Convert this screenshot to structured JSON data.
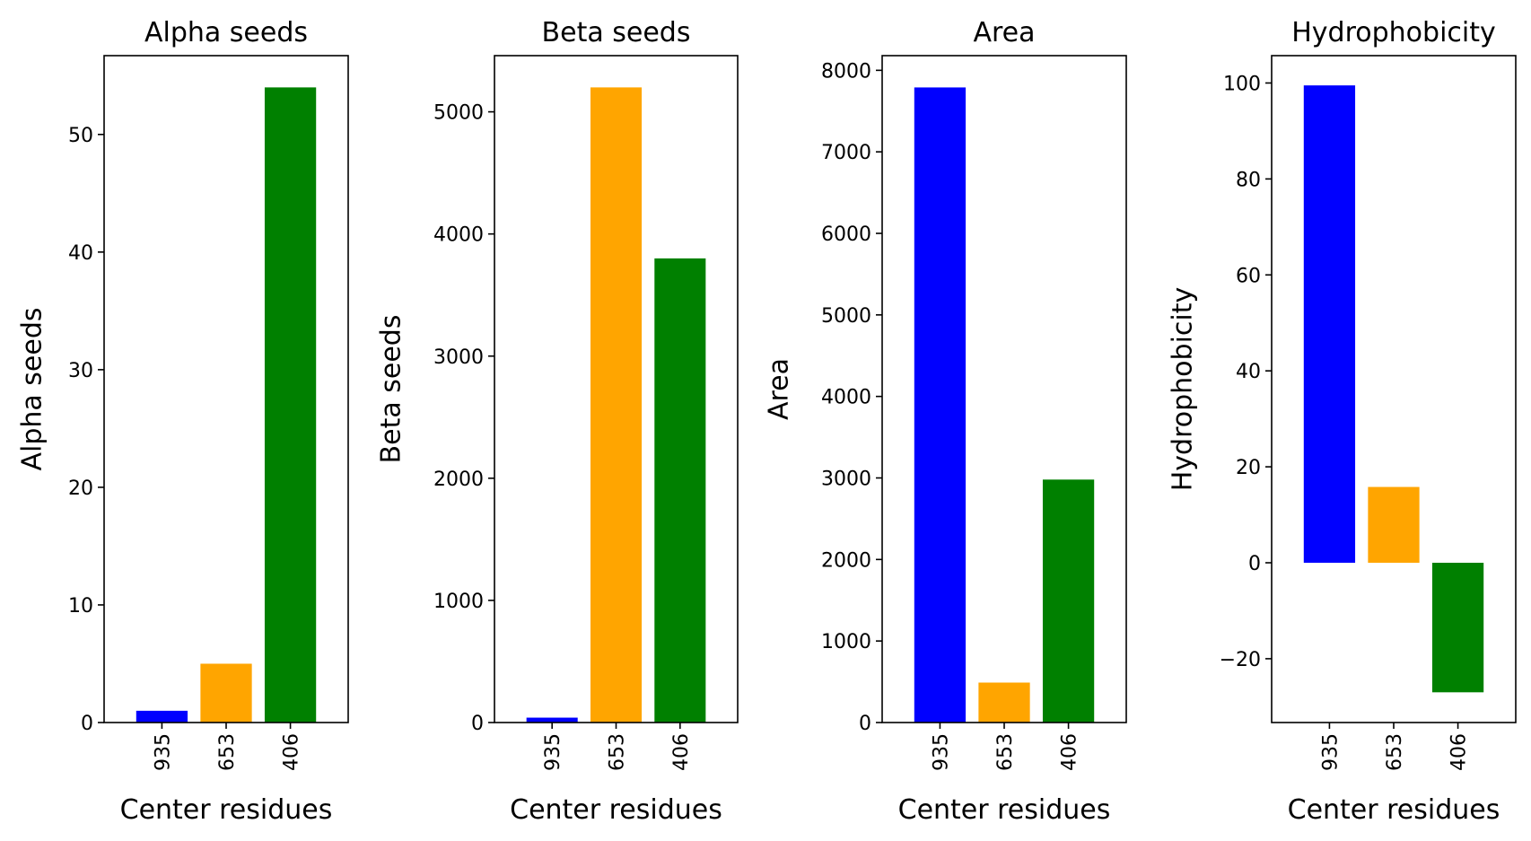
{
  "colors": {
    "bar_colors": [
      "#0000ff",
      "#ffa500",
      "#008000"
    ]
  },
  "chart_data": [
    {
      "type": "bar",
      "title": "Alpha seeds",
      "xlabel": "Center residues",
      "ylabel": "Alpha seeds",
      "categories": [
        "935",
        "653",
        "406"
      ],
      "values": [
        1,
        5,
        54
      ],
      "ylim": [
        0,
        56.7
      ],
      "yticks": [
        0,
        10,
        20,
        30,
        40,
        50
      ],
      "ytick_labels": [
        "0",
        "10",
        "20",
        "30",
        "40",
        "50"
      ],
      "grid": false
    },
    {
      "type": "bar",
      "title": "Beta seeds",
      "xlabel": "Center residues",
      "ylabel": "Beta seeds",
      "categories": [
        "935",
        "653",
        "406"
      ],
      "values": [
        40,
        5200,
        3800
      ],
      "ylim": [
        0,
        5460
      ],
      "yticks": [
        0,
        1000,
        2000,
        3000,
        4000,
        5000
      ],
      "ytick_labels": [
        "0",
        "1000",
        "2000",
        "3000",
        "4000",
        "5000"
      ],
      "grid": false
    },
    {
      "type": "bar",
      "title": "Area",
      "xlabel": "Center residues",
      "ylabel": "Area",
      "categories": [
        "935",
        "653",
        "406"
      ],
      "values": [
        7790,
        490,
        2980
      ],
      "ylim": [
        0,
        8180
      ],
      "yticks": [
        0,
        1000,
        2000,
        3000,
        4000,
        5000,
        6000,
        7000,
        8000
      ],
      "ytick_labels": [
        "0",
        "1000",
        "2000",
        "3000",
        "4000",
        "5000",
        "6000",
        "7000",
        "8000"
      ],
      "grid": false
    },
    {
      "type": "bar",
      "title": "Hydrophobicity",
      "xlabel": "Center residues",
      "ylabel": "Hydrophobicity",
      "categories": [
        "935",
        "653",
        "406"
      ],
      "values": [
        99.5,
        15.8,
        -27
      ],
      "ylim": [
        -33.3,
        105.7
      ],
      "yticks": [
        -20,
        0,
        20,
        40,
        60,
        80,
        100
      ],
      "ytick_labels": [
        "−20",
        "0",
        "20",
        "40",
        "60",
        "80",
        "100"
      ],
      "grid": false
    }
  ]
}
